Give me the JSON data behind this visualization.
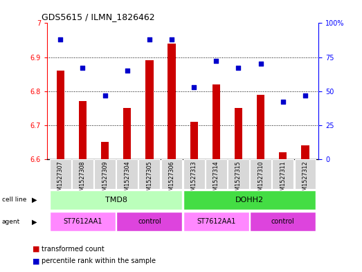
{
  "title": "GDS5615 / ILMN_1826462",
  "samples": [
    "GSM1527307",
    "GSM1527308",
    "GSM1527309",
    "GSM1527304",
    "GSM1527305",
    "GSM1527306",
    "GSM1527313",
    "GSM1527314",
    "GSM1527315",
    "GSM1527310",
    "GSM1527311",
    "GSM1527312"
  ],
  "bar_values": [
    6.86,
    6.77,
    6.65,
    6.75,
    6.89,
    6.94,
    6.71,
    6.82,
    6.75,
    6.79,
    6.62,
    6.64
  ],
  "bar_base": 6.6,
  "percentile_values": [
    88,
    67,
    47,
    65,
    88,
    88,
    53,
    72,
    67,
    70,
    42,
    47
  ],
  "ylim_left": [
    6.6,
    7.0
  ],
  "ylim_right": [
    0,
    100
  ],
  "yticks_left": [
    6.6,
    6.7,
    6.8,
    6.9,
    7.0
  ],
  "ytick_labels_left": [
    "6.6",
    "6.7",
    "6.8",
    "6.9",
    "7"
  ],
  "yticks_right": [
    0,
    25,
    50,
    75,
    100
  ],
  "ytick_labels_right": [
    "0",
    "25",
    "50",
    "75",
    "100%"
  ],
  "bar_color": "#cc0000",
  "dot_color": "#0000cc",
  "cell_line_color_light": "#bbffbb",
  "cell_line_color_dark": "#44dd44",
  "agent_color_light": "#ff88ff",
  "agent_color_dark": "#dd44dd",
  "legend_text1": "transformed count",
  "legend_text2": "percentile rank within the sample",
  "tick_area_color": "#d8d8d8"
}
